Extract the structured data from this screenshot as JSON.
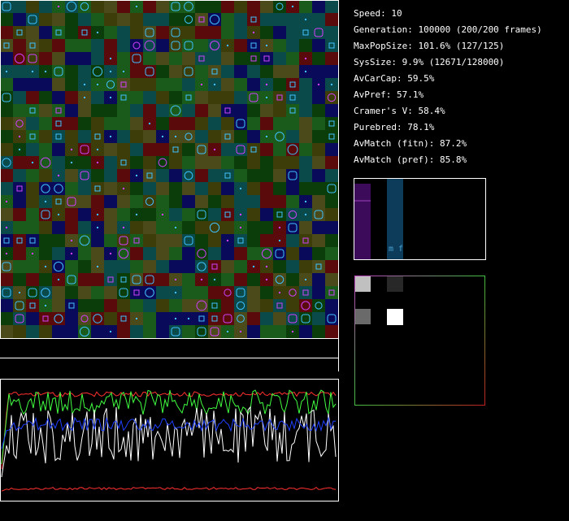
{
  "stats": [
    "Speed: 10",
    "Generation: 100000 (200/200 frames)",
    "MaxPopSize: 101.6% (127/125)",
    "SysSize: 9.9% (12671/128000)",
    "AvCarCap: 59.5%",
    "AvPref: 57.1%",
    "Cramer's V: 58.4%",
    "Purebred: 78.1%",
    "AvMatch (fitn): 87.2%",
    "AvMatch (pref): 85.8%"
  ],
  "histogram": {
    "label": "m f"
  }
}
